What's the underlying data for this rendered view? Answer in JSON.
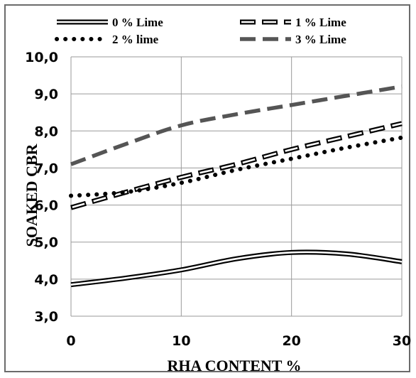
{
  "chart_data": {
    "type": "line",
    "xlabel": "RHA CONTENT %",
    "ylabel": "SOAKED CBR",
    "x_ticks": [
      "0",
      "10",
      "20",
      "30"
    ],
    "y_ticks": [
      "3,0",
      "4,0",
      "5,0",
      "6,0",
      "7,0",
      "8,0",
      "9,0",
      "10,0"
    ],
    "xlim": [
      0,
      30
    ],
    "ylim": [
      3,
      10
    ],
    "grid": true,
    "legend_position": "top",
    "series": [
      {
        "name": "0 % Lime",
        "style": "double-line",
        "color": "#000000",
        "x": [
          0,
          5,
          10,
          15,
          20,
          25,
          30
        ],
        "y": [
          3.85,
          4.03,
          4.25,
          4.55,
          4.72,
          4.68,
          4.47
        ]
      },
      {
        "name": "1 % Lime",
        "style": "double-dash",
        "color": "#000000",
        "x": [
          0,
          5,
          10,
          15,
          20,
          25,
          30
        ],
        "y": [
          5.93,
          6.35,
          6.75,
          7.1,
          7.5,
          7.85,
          8.2
        ]
      },
      {
        "name": "2 % lime",
        "style": "dotted",
        "color": "#000000",
        "x": [
          0,
          5,
          10,
          15,
          20,
          25,
          30
        ],
        "y": [
          6.25,
          6.35,
          6.6,
          6.95,
          7.25,
          7.55,
          7.82
        ]
      },
      {
        "name": "3 % Lime",
        "style": "dashed",
        "color": "#555555",
        "x": [
          0,
          5,
          10,
          15,
          20,
          25,
          30
        ],
        "y": [
          7.1,
          7.65,
          8.15,
          8.45,
          8.7,
          8.95,
          9.2
        ]
      }
    ]
  }
}
